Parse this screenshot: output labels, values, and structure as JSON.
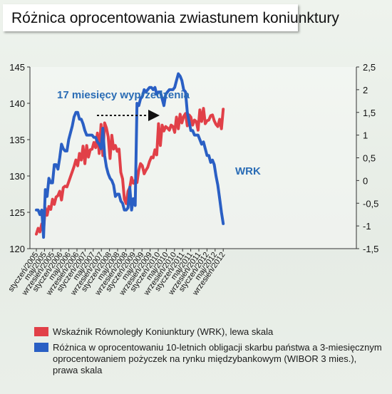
{
  "title": "Różnica oprocentowania zwiastunem koniunktury",
  "chart_data": {
    "type": "line",
    "x_categories": [
      "styczeń/2005",
      "maj/2005",
      "wrzesień/2005",
      "styczeń/2006",
      "maj/2006",
      "wrzesień/2006",
      "styczeń/2007",
      "maj/2007",
      "wrzesień/2007",
      "styczeń/2008",
      "maj/2008",
      "wrzesień/2008",
      "styczeń/2009",
      "maj/2009",
      "wrzesień/2009",
      "styczeń/2010",
      "maj/2010",
      "wrzesień/2010",
      "styczeń/2011",
      "maj/2011",
      "wrzesień/2011",
      "styczeń/2012",
      "maj/2012",
      "wrzesień/2012"
    ],
    "y_left": {
      "ticks": [
        "120",
        "125",
        "130",
        "135",
        "140",
        "145"
      ],
      "range": [
        120,
        145
      ]
    },
    "y_right": {
      "ticks": [
        "2,5",
        "2",
        "1,5",
        "1",
        "0,5",
        "0",
        "-0,5",
        "-1",
        "-1,5"
      ],
      "range": [
        -1.5,
        2.5
      ]
    },
    "annotations": [
      {
        "text": "17 miesięcy wyprzedzenia",
        "color": "#2a6cb5"
      },
      {
        "text": "WRK",
        "color": "#2a6cb5"
      }
    ],
    "series": [
      {
        "name": "Wskaźnik Równoległy Koniunktury (WRK), lewa skala",
        "axis": "left",
        "color": "#e14048",
        "points": [
          [
            0,
            122.0
          ],
          [
            1,
            122.8
          ],
          [
            2,
            122.3
          ],
          [
            3,
            123.4
          ],
          [
            4,
            122.6
          ],
          [
            5,
            125.6
          ],
          [
            6,
            124.6
          ],
          [
            7,
            125.8
          ],
          [
            8,
            125.4
          ],
          [
            9,
            126.8
          ],
          [
            10,
            126.1
          ],
          [
            11,
            127.1
          ],
          [
            12,
            127.3
          ],
          [
            13,
            127.9
          ],
          [
            14,
            126.7
          ],
          [
            15,
            128.4
          ],
          [
            16,
            128.6
          ],
          [
            17,
            128.5
          ],
          [
            18,
            129.2
          ],
          [
            19,
            129.9
          ],
          [
            20,
            130.6
          ],
          [
            21,
            131.3
          ],
          [
            22,
            132.2
          ],
          [
            23,
            131.4
          ],
          [
            24,
            133.1
          ],
          [
            25,
            132.2
          ],
          [
            26,
            134.1
          ],
          [
            27,
            131.7
          ],
          [
            28,
            134.2
          ],
          [
            29,
            132.6
          ],
          [
            30,
            133.6
          ],
          [
            31,
            133.7
          ],
          [
            32,
            134.6
          ],
          [
            33,
            133.9
          ],
          [
            34,
            135.9
          ],
          [
            35,
            133.1
          ],
          [
            36,
            137.1
          ],
          [
            37,
            132.8
          ],
          [
            38,
            137.3
          ],
          [
            39,
            136.6
          ],
          [
            40,
            135.4
          ],
          [
            41,
            132.4
          ],
          [
            42,
            135.6
          ],
          [
            43,
            133.7
          ],
          [
            44,
            134.2
          ],
          [
            45,
            133.4
          ],
          [
            46,
            133.7
          ],
          [
            47,
            130.5
          ],
          [
            48,
            129.6
          ],
          [
            49,
            126.8
          ],
          [
            50,
            126.2
          ],
          [
            51,
            127.9
          ],
          [
            52,
            128.4
          ],
          [
            53,
            129.8
          ],
          [
            54,
            129.0
          ],
          [
            55,
            129.4
          ],
          [
            56,
            129.1
          ],
          [
            57,
            130.8
          ],
          [
            58,
            131.7
          ],
          [
            59,
            131.4
          ],
          [
            60,
            130.3
          ],
          [
            61,
            130.8
          ],
          [
            62,
            131.2
          ],
          [
            63,
            132.0
          ],
          [
            64,
            132.6
          ],
          [
            65,
            132.5
          ],
          [
            66,
            133.6
          ],
          [
            67,
            132.9
          ],
          [
            68,
            137.2
          ],
          [
            69,
            134.2
          ],
          [
            70,
            137.0
          ],
          [
            71,
            136.2
          ],
          [
            72,
            136.8
          ],
          [
            73,
            136.6
          ],
          [
            74,
            136.3
          ],
          [
            75,
            137.0
          ],
          [
            76,
            136.8
          ],
          [
            77,
            136.0
          ],
          [
            78,
            138.1
          ],
          [
            79,
            136.5
          ],
          [
            80,
            138.5
          ],
          [
            81,
            137.3
          ],
          [
            82,
            138.2
          ],
          [
            83,
            138.6
          ],
          [
            84,
            136.9
          ],
          [
            85,
            138.4
          ],
          [
            86,
            138.1
          ],
          [
            87,
            137.0
          ],
          [
            88,
            137.7
          ],
          [
            89,
            137.5
          ],
          [
            90,
            136.3
          ],
          [
            91,
            139.1
          ],
          [
            92,
            137.5
          ],
          [
            93,
            139.3
          ],
          [
            94,
            137.2
          ],
          [
            95,
            137.6
          ],
          [
            96,
            137.7
          ],
          [
            97,
            138.3
          ],
          [
            98,
            138.4
          ],
          [
            99,
            137.6
          ],
          [
            100,
            137.1
          ],
          [
            101,
            136.8
          ],
          [
            102,
            137.8
          ],
          [
            103,
            136.5
          ],
          [
            104,
            139.2
          ]
        ]
      },
      {
        "name": "Różnica w oprocentowaniu 10-letnich obligacji skarbu państwa a 3-miesięcznym oprocentowaniem pożyczek na rynku międzybankowym (WIBOR 3 mies.), prawa skala",
        "axis": "right",
        "color": "#2a5fc4",
        "points": [
          [
            0,
            -0.65
          ],
          [
            1,
            -0.65
          ],
          [
            2,
            -0.75
          ],
          [
            3,
            -0.65
          ],
          [
            4,
            -1.25
          ],
          [
            5,
            -0.2
          ],
          [
            6,
            -0.35
          ],
          [
            7,
            0.05
          ],
          [
            8,
            -0.05
          ],
          [
            9,
            -0.05
          ],
          [
            10,
            0.35
          ],
          [
            11,
            0.35
          ],
          [
            12,
            0.25
          ],
          [
            13,
            0.5
          ],
          [
            14,
            0.8
          ],
          [
            15,
            0.7
          ],
          [
            16,
            0.65
          ],
          [
            17,
            0.65
          ],
          [
            18,
            0.9
          ],
          [
            19,
            1.05
          ],
          [
            20,
            1.2
          ],
          [
            21,
            1.4
          ],
          [
            22,
            1.5
          ],
          [
            23,
            1.5
          ],
          [
            24,
            1.35
          ],
          [
            25,
            1.35
          ],
          [
            26,
            1.25
          ],
          [
            27,
            1.1
          ],
          [
            28,
            1.0
          ],
          [
            29,
            1.0
          ],
          [
            30,
            1.0
          ],
          [
            31,
            1.0
          ],
          [
            32,
            0.95
          ],
          [
            33,
            0.95
          ],
          [
            34,
            0.85
          ],
          [
            35,
            0.8
          ],
          [
            36,
            0.7
          ],
          [
            37,
            1.15
          ],
          [
            38,
            0.55
          ],
          [
            39,
            0.3
          ],
          [
            40,
            0.15
          ],
          [
            41,
            0.05
          ],
          [
            42,
            0.0
          ],
          [
            43,
            -0.1
          ],
          [
            44,
            -0.35
          ],
          [
            45,
            -0.3
          ],
          [
            46,
            -0.3
          ],
          [
            47,
            -0.45
          ],
          [
            48,
            -0.5
          ],
          [
            49,
            -0.65
          ],
          [
            50,
            -0.65
          ],
          [
            51,
            -0.6
          ],
          [
            52,
            -0.15
          ],
          [
            53,
            -0.65
          ],
          [
            54,
            -0.4
          ],
          [
            55,
            -0.55
          ],
          [
            56,
            1.7
          ],
          [
            57,
            1.65
          ],
          [
            58,
            1.8
          ],
          [
            59,
            1.85
          ],
          [
            60,
            2.0
          ],
          [
            61,
            1.95
          ],
          [
            62,
            2.0
          ],
          [
            63,
            2.05
          ],
          [
            64,
            2.05
          ],
          [
            65,
            2.0
          ],
          [
            66,
            2.05
          ],
          [
            67,
            1.9
          ],
          [
            68,
            1.95
          ],
          [
            69,
            1.95
          ],
          [
            70,
            1.8
          ],
          [
            71,
            1.65
          ],
          [
            72,
            1.9
          ],
          [
            73,
            1.95
          ],
          [
            74,
            2.0
          ],
          [
            75,
            2.0
          ],
          [
            76,
            2.0
          ],
          [
            77,
            2.05
          ],
          [
            78,
            2.2
          ],
          [
            79,
            2.35
          ],
          [
            80,
            2.3
          ],
          [
            81,
            2.2
          ],
          [
            82,
            2.0
          ],
          [
            83,
            1.95
          ],
          [
            84,
            1.5
          ],
          [
            85,
            1.3
          ],
          [
            86,
            1.1
          ],
          [
            87,
            1.1
          ],
          [
            88,
            1.0
          ],
          [
            89,
            1.0
          ],
          [
            90,
            1.0
          ],
          [
            91,
            0.9
          ],
          [
            92,
            0.8
          ],
          [
            93,
            0.85
          ],
          [
            94,
            0.7
          ],
          [
            95,
            0.55
          ],
          [
            96,
            0.55
          ],
          [
            97,
            0.4
          ],
          [
            98,
            0.45
          ],
          [
            99,
            0.35
          ],
          [
            100,
            0.1
          ],
          [
            101,
            -0.1
          ],
          [
            102,
            -0.4
          ],
          [
            103,
            -0.7
          ],
          [
            104,
            -0.95
          ]
        ]
      }
    ]
  },
  "legend": {
    "items": [
      {
        "label": "Wskaźnik Równoległy Koniunktury (WRK), lewa skala",
        "color": "#e14048"
      },
      {
        "label": "Różnica w oprocentowaniu 10-letnich obligacji skarbu państwa a 3-miesięcznym oprocentowaniem pożyczek na rynku międzybankowym (WIBOR 3 mies.), prawa skala",
        "color": "#2a5fc4"
      }
    ]
  }
}
